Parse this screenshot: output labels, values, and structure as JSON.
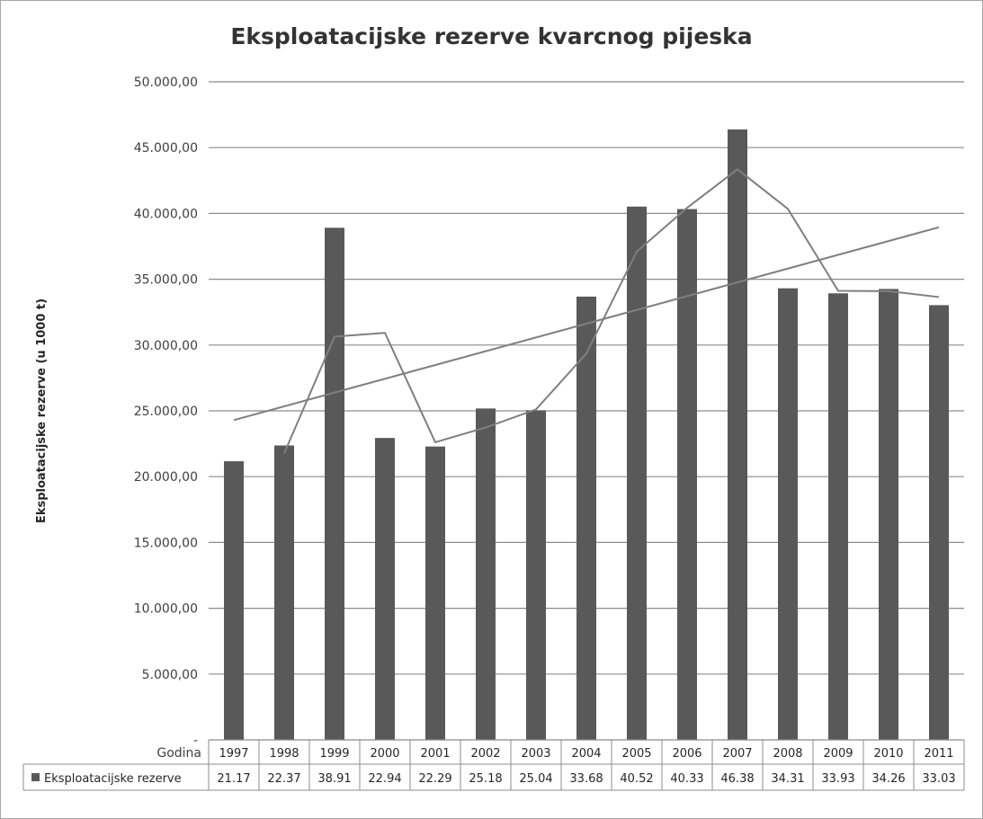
{
  "chart_data": {
    "type": "bar",
    "title": "Eksploatacijske rezerve kvarcnog pijeska",
    "ylabel": "Eksploatacijske rezerve (u 1000 t)",
    "ylim": [
      0,
      50000
    ],
    "ytick_labels": [
      "5.000,00",
      "10.000,00",
      "15.000,00",
      "20.000,00",
      "25.000,00",
      "30.000,00",
      "35.000,00",
      "40.000,00",
      "45.000,00",
      "50.000,00"
    ],
    "ytick_zero_label": "-",
    "table_header_label": "Godina",
    "categories": [
      "1997",
      "1998",
      "1999",
      "2000",
      "2001",
      "2002",
      "2003",
      "2004",
      "2005",
      "2006",
      "2007",
      "2008",
      "2009",
      "2010",
      "2011"
    ],
    "series": [
      {
        "name": "Eksploatacijske rezerve",
        "values": [
          21170,
          22370,
          38910,
          22940,
          22290,
          25180,
          25040,
          33680,
          40520,
          40330,
          46380,
          34310,
          33930,
          34260,
          33030
        ],
        "labels": [
          "21.17",
          "22.37",
          "38.91",
          "22.94",
          "22.29",
          "25.18",
          "25.04",
          "33.68",
          "40.52",
          "40.33",
          "46.38",
          "34.31",
          "33.93",
          "34.26",
          "33.03"
        ],
        "color": "#595959"
      }
    ],
    "moving_average_period": 2,
    "trendline": "linear",
    "line_color": "#7f7f7f",
    "grid": true,
    "legend": "data-table"
  }
}
